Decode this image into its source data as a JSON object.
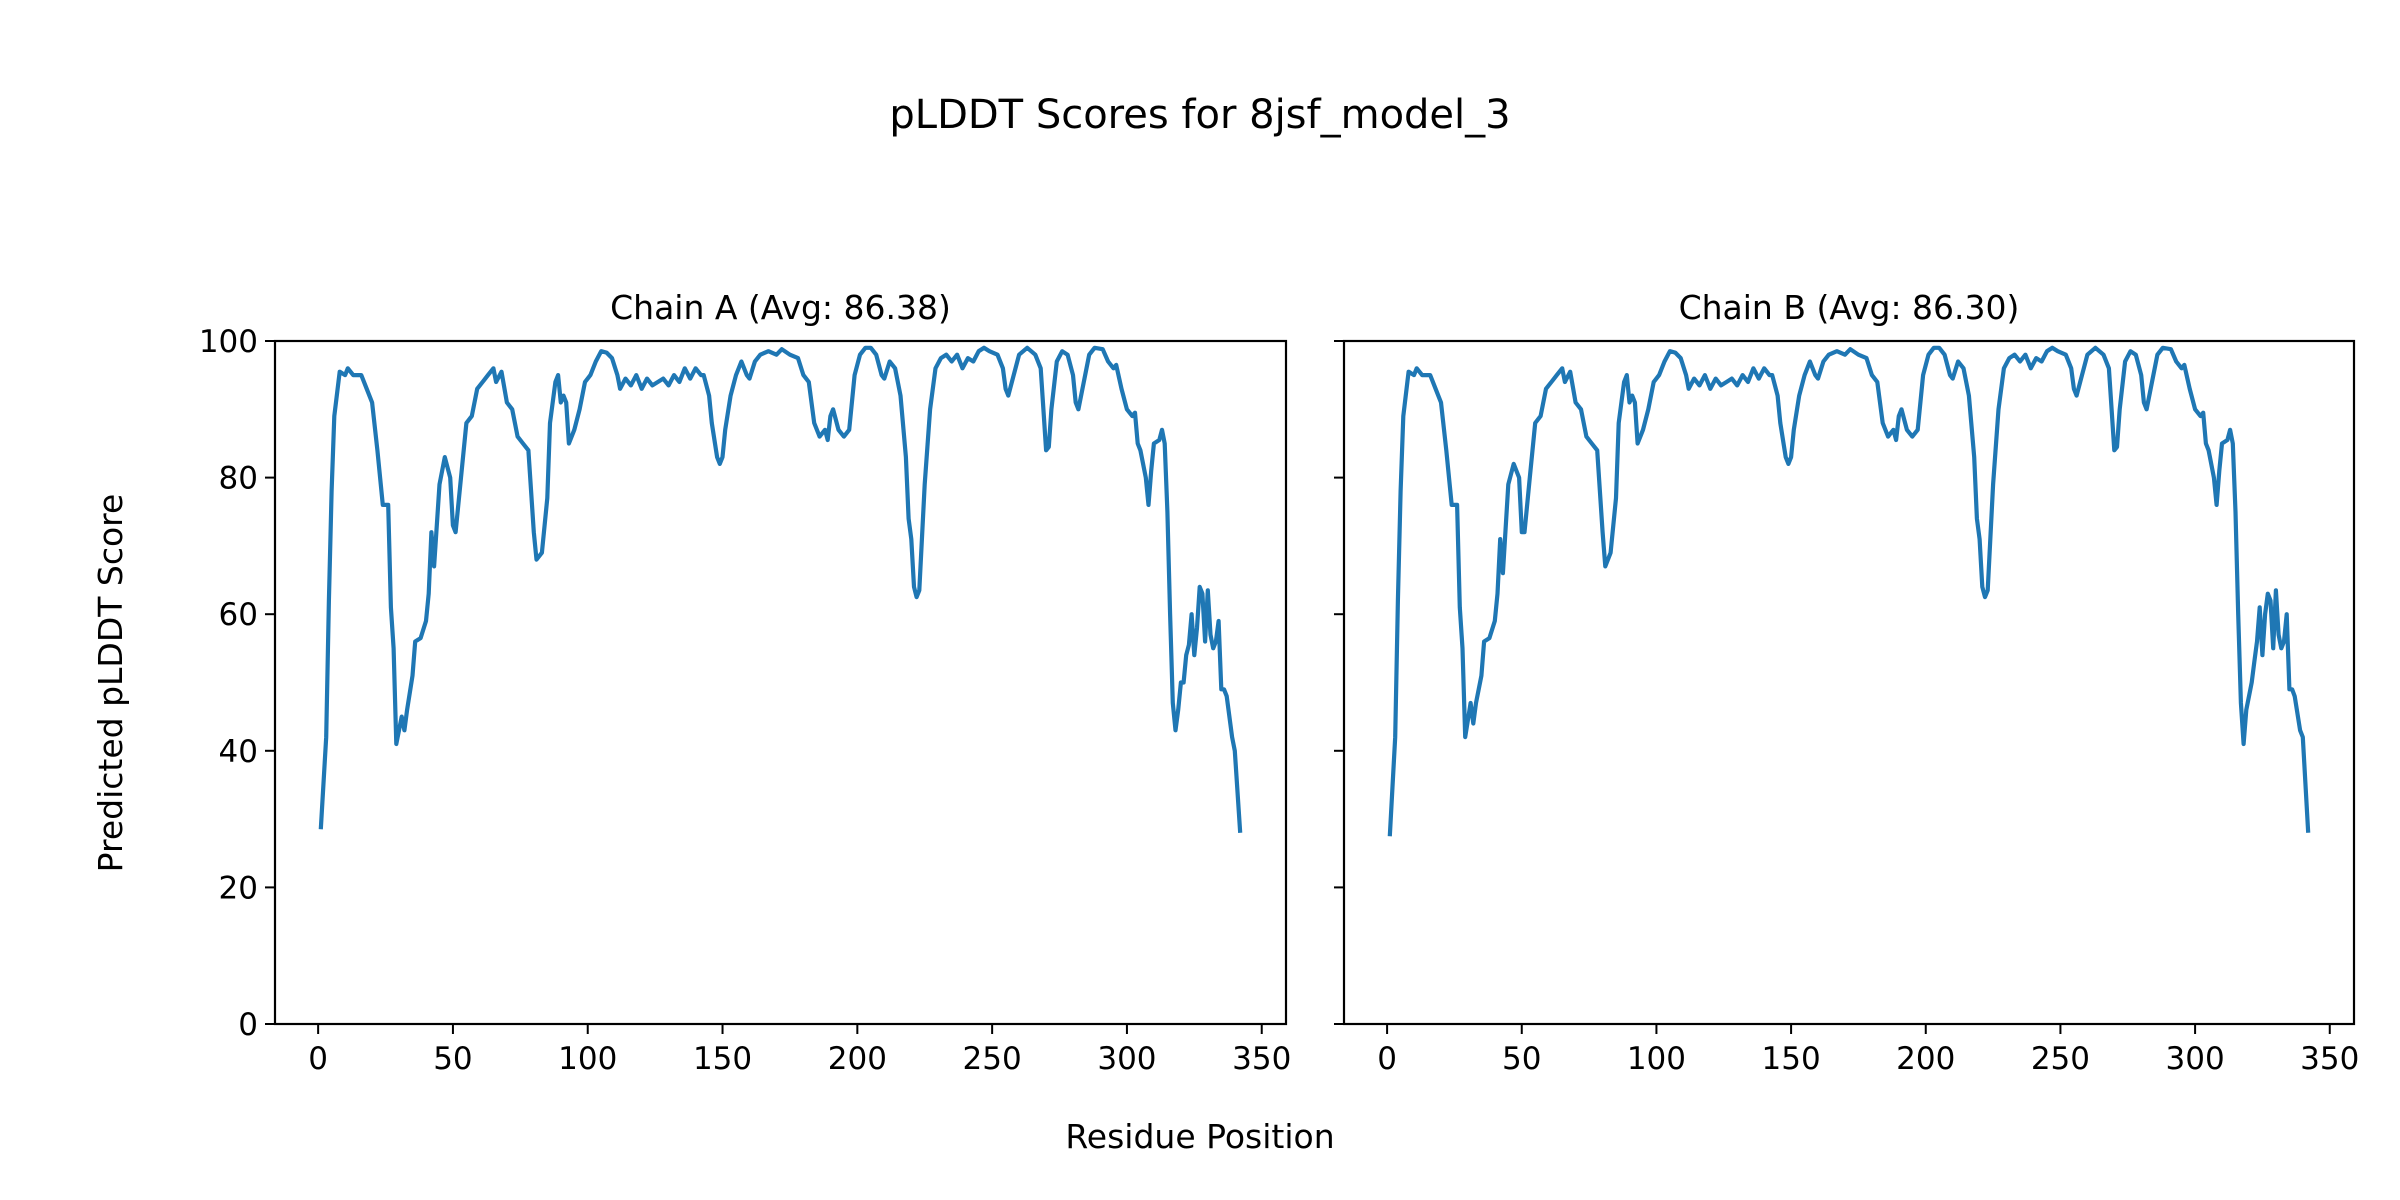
{
  "chart_data": {
    "type": "line",
    "title": "pLDDT Scores for 8jsf_model_3",
    "xlabel": "Residue Position",
    "ylabel": "Predicted pLDDT Score",
    "xlim": [
      -16,
      359
    ],
    "ylim": [
      0,
      100
    ],
    "xticks": [
      0,
      50,
      100,
      150,
      200,
      250,
      300,
      350
    ],
    "yticks": [
      0,
      20,
      40,
      60,
      80,
      100
    ],
    "line_color": "#1f77b4",
    "grid": false,
    "sharey": true,
    "panels": [
      {
        "title": "Chain A (Avg: 86.38)",
        "x": [
          1,
          3,
          4,
          5,
          6,
          8,
          10,
          11,
          13,
          16,
          18,
          20,
          22,
          24,
          26,
          27,
          28,
          29,
          31,
          32,
          33,
          35,
          36,
          38,
          40,
          41,
          42,
          43,
          45,
          47,
          49,
          50,
          51,
          53,
          55,
          57,
          59,
          61,
          63,
          65,
          66,
          68,
          70,
          72,
          74,
          76,
          78,
          80,
          81,
          83,
          85,
          86,
          88,
          89,
          90,
          91,
          92,
          93,
          95,
          97,
          99,
          101,
          103,
          105,
          107,
          109,
          111,
          112,
          114,
          116,
          118,
          120,
          122,
          124,
          126,
          128,
          130,
          132,
          134,
          136,
          138,
          140,
          142,
          143,
          145,
          146,
          148,
          149,
          150,
          151,
          153,
          155,
          157,
          159,
          160,
          162,
          164,
          167,
          170,
          172,
          175,
          178,
          180,
          182,
          184,
          186,
          187,
          188,
          189,
          190,
          191,
          193,
          195,
          197,
          199,
          201,
          203,
          205,
          207,
          209,
          210,
          212,
          214,
          216,
          218,
          219,
          220,
          221,
          222,
          223,
          225,
          227,
          229,
          231,
          233,
          235,
          237,
          239,
          241,
          243,
          245,
          247,
          249,
          252,
          254,
          255,
          256,
          258,
          260,
          263,
          266,
          268,
          270,
          271,
          272,
          274,
          276,
          278,
          280,
          281,
          282,
          284,
          286,
          288,
          291,
          293,
          295,
          296,
          298,
          300,
          302,
          303,
          304,
          305,
          307,
          308,
          309,
          310,
          312,
          313,
          314,
          315,
          316,
          317,
          318,
          319,
          320,
          321,
          322,
          323,
          324,
          325,
          326,
          327,
          328,
          329,
          330,
          331,
          332,
          333,
          334,
          335,
          336,
          337,
          339,
          340,
          342
        ],
        "y": [
          28.5,
          42,
          62,
          78,
          89,
          95.5,
          95,
          96,
          95,
          95,
          93,
          91,
          84,
          76,
          76,
          61,
          55,
          41,
          45,
          43,
          46,
          51,
          56,
          56.5,
          59,
          63,
          72,
          67,
          79,
          83,
          80,
          73,
          72,
          80,
          88,
          89,
          93,
          94,
          95,
          96,
          94,
          95.5,
          91,
          90,
          86,
          85,
          84,
          72,
          68,
          69,
          77,
          88,
          94,
          95,
          91,
          92,
          91,
          85,
          87,
          90,
          94,
          95,
          97,
          98.5,
          98.3,
          97.5,
          95,
          93,
          94.5,
          93.5,
          95,
          93,
          94.5,
          93.5,
          94,
          94.5,
          93.5,
          95,
          94,
          96,
          94.5,
          96,
          95,
          95,
          92,
          88,
          83,
          82,
          83,
          87,
          92,
          95,
          97,
          95,
          94.5,
          97,
          98,
          98.5,
          98,
          98.8,
          98,
          97.5,
          95,
          94,
          88,
          86,
          86.5,
          87,
          85.5,
          89,
          90,
          87,
          86,
          87,
          95,
          98,
          99,
          99,
          98,
          95,
          94.5,
          97,
          96,
          92,
          83,
          74,
          71,
          64,
          62.5,
          63.5,
          79,
          90,
          96,
          97.5,
          98,
          97,
          98,
          96,
          97.5,
          97,
          98.5,
          99,
          98.5,
          98,
          96,
          93,
          92,
          95,
          98,
          99,
          98,
          96,
          84,
          84.5,
          90,
          97,
          98.5,
          98,
          95,
          91,
          90,
          94,
          98,
          99,
          98.8,
          97,
          96,
          96.5,
          93,
          90,
          89,
          89.5,
          85,
          84,
          80,
          76,
          81,
          85,
          85.5,
          87,
          85,
          75,
          60,
          47,
          43,
          46,
          50,
          50,
          54,
          55.5,
          60,
          54,
          58,
          64,
          63,
          56,
          63.5,
          57,
          55,
          56,
          59,
          49,
          49,
          48,
          42,
          40,
          28
        ]
      },
      {
        "title": "Chain B (Avg: 86.30)",
        "x": [
          1,
          3,
          4,
          5,
          6,
          8,
          10,
          11,
          13,
          16,
          18,
          20,
          22,
          24,
          26,
          27,
          28,
          29,
          31,
          32,
          33,
          35,
          36,
          38,
          40,
          41,
          42,
          43,
          45,
          47,
          49,
          50,
          51,
          53,
          55,
          57,
          59,
          61,
          63,
          65,
          66,
          68,
          70,
          72,
          74,
          76,
          78,
          80,
          81,
          83,
          85,
          86,
          88,
          89,
          90,
          91,
          92,
          93,
          95,
          97,
          99,
          101,
          103,
          105,
          107,
          109,
          111,
          112,
          114,
          116,
          118,
          120,
          122,
          124,
          126,
          128,
          130,
          132,
          134,
          136,
          138,
          140,
          142,
          143,
          145,
          146,
          148,
          149,
          150,
          151,
          153,
          155,
          157,
          159,
          160,
          162,
          164,
          167,
          170,
          172,
          175,
          178,
          180,
          182,
          184,
          186,
          187,
          188,
          189,
          190,
          191,
          193,
          195,
          197,
          199,
          201,
          203,
          205,
          207,
          209,
          210,
          212,
          214,
          216,
          218,
          219,
          220,
          221,
          222,
          223,
          225,
          227,
          229,
          231,
          233,
          235,
          237,
          239,
          241,
          243,
          245,
          247,
          249,
          252,
          254,
          255,
          256,
          258,
          260,
          263,
          266,
          268,
          270,
          271,
          272,
          274,
          276,
          278,
          280,
          281,
          282,
          284,
          286,
          288,
          291,
          293,
          295,
          296,
          298,
          300,
          302,
          303,
          304,
          305,
          307,
          308,
          309,
          310,
          312,
          313,
          314,
          315,
          316,
          317,
          318,
          319,
          320,
          321,
          322,
          323,
          324,
          325,
          326,
          327,
          328,
          329,
          330,
          331,
          332,
          333,
          334,
          335,
          336,
          337,
          339,
          340,
          342
        ],
        "y": [
          27.5,
          42,
          62,
          78,
          89,
          95.5,
          95,
          96,
          95,
          95,
          93,
          91,
          84,
          76,
          76,
          61,
          55,
          42,
          47,
          44,
          47,
          51,
          56,
          56.5,
          59,
          63,
          71,
          66,
          79,
          82,
          80,
          72,
          72,
          80,
          88,
          89,
          93,
          94,
          95,
          96,
          94,
          95.5,
          91,
          90,
          86,
          85,
          84,
          72,
          67,
          69,
          77,
          88,
          94,
          95,
          91,
          92,
          91,
          85,
          87,
          90,
          94,
          95,
          97,
          98.5,
          98.3,
          97.5,
          95,
          93,
          94.5,
          93.5,
          95,
          93,
          94.5,
          93.5,
          94,
          94.5,
          93.5,
          95,
          94,
          96,
          94.5,
          96,
          95,
          95,
          92,
          88,
          83,
          82,
          83,
          87,
          92,
          95,
          97,
          95,
          94.5,
          97,
          98,
          98.5,
          98,
          98.8,
          98,
          97.5,
          95,
          94,
          88,
          86,
          86.5,
          87,
          85.5,
          89,
          90,
          87,
          86,
          87,
          95,
          98,
          99,
          99,
          98,
          95,
          94.5,
          97,
          96,
          92,
          83,
          74,
          71,
          64,
          62.5,
          63.5,
          79,
          90,
          96,
          97.5,
          98,
          97,
          98,
          96,
          97.5,
          97,
          98.5,
          99,
          98.5,
          98,
          96,
          93,
          92,
          95,
          98,
          99,
          98,
          96,
          84,
          84.5,
          90,
          97,
          98.5,
          98,
          95,
          91,
          90,
          94,
          98,
          99,
          98.8,
          97,
          96,
          96.5,
          93,
          90,
          89,
          89.5,
          85,
          84,
          80,
          76,
          81,
          85,
          85.5,
          87,
          85,
          75,
          60,
          47,
          41,
          46,
          48,
          50,
          53,
          56,
          61,
          54,
          60,
          63,
          62,
          55,
          63.5,
          57,
          55,
          56,
          60,
          49,
          49,
          48,
          43,
          42,
          28
        ]
      }
    ]
  }
}
